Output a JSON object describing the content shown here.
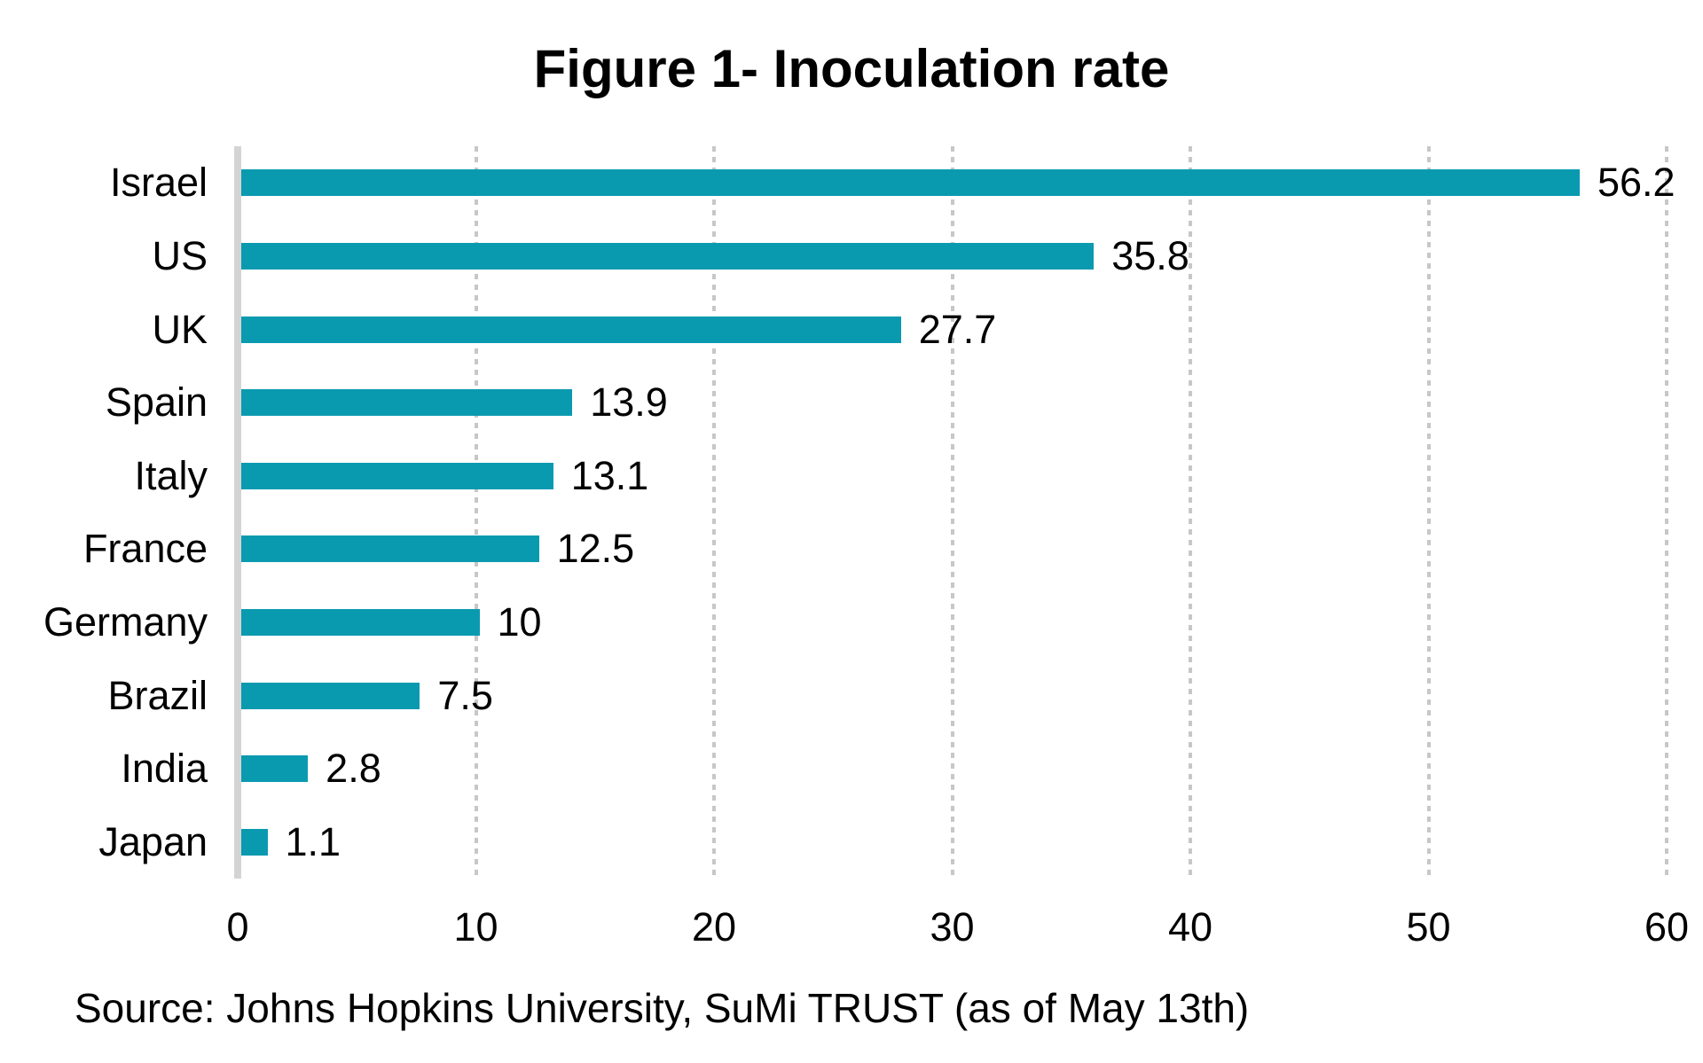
{
  "title": "Figure 1- Inoculation rate",
  "source_note": "Source: Johns Hopkins University, SuMi TRUST (as of May 13th)",
  "colors": {
    "bar": "#0a9ab0",
    "axis_line": "#d4d4d4",
    "gridline": "#c7c7c7",
    "text": "#000000",
    "background": "#ffffff"
  },
  "chart_data": {
    "type": "bar",
    "orientation": "horizontal",
    "title": "Figure 1- Inoculation rate",
    "categories": [
      "Israel",
      "US",
      "UK",
      "Spain",
      "Italy",
      "France",
      "Germany",
      "Brazil",
      "India",
      "Japan"
    ],
    "values": [
      56.2,
      35.8,
      27.7,
      13.9,
      13.1,
      12.5,
      10,
      7.5,
      2.8,
      1.1
    ],
    "value_labels": [
      "56.2",
      "35.8",
      "27.7",
      "13.9",
      "13.1",
      "12.5",
      "10",
      "7.5",
      "2.8",
      "1.1"
    ],
    "xlabel": "",
    "ylabel": "",
    "xlim": [
      0,
      60
    ],
    "x_ticks": [
      0,
      10,
      20,
      30,
      40,
      50,
      60
    ],
    "grid": "vertical dotted gridlines at each x tick",
    "legend": "none",
    "data_labels": "outside end of each bar",
    "source": "Source: Johns Hopkins University, SuMi TRUST (as of May 13th)"
  }
}
